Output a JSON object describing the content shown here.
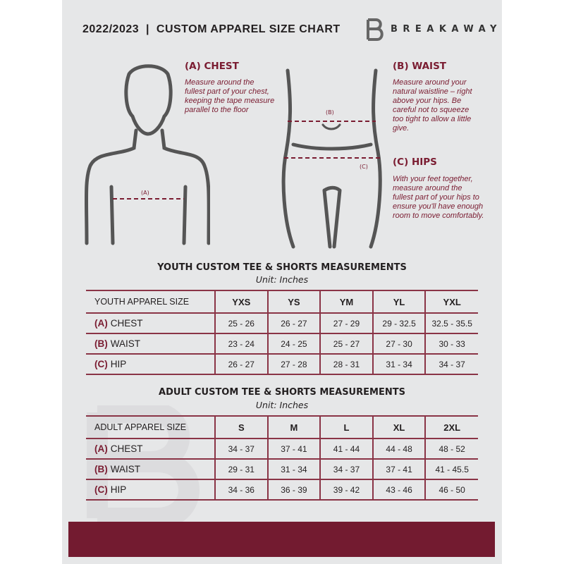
{
  "header": {
    "title": "2022/2023  |  CUSTOM APPAREL SIZE CHART",
    "brand": "BREAKAWAY"
  },
  "measures": {
    "chest": {
      "heading": "(A) CHEST",
      "text": "Measure around the fullest part of your chest, keeping the tape measure parallel to the floor",
      "marker": "(A)"
    },
    "waist": {
      "heading": "(B) WAIST",
      "text": "Measure around your natural waistline – right above your hips. Be careful not to squeeze too tight to allow a little give.",
      "marker": "(B)"
    },
    "hips": {
      "heading": "(C) HIPS",
      "text": "With your feet together, measure around the fullest part of your hips to ensure you'll have enough room to move comfortably.",
      "marker": "(C)"
    }
  },
  "youth": {
    "title": "YOUTH CUSTOM TEE & SHORTS MEASUREMENTS",
    "unit": "Unit: Inches",
    "header": [
      "YOUTH APPAREL SIZE",
      "YXS",
      "YS",
      "YM",
      "YL",
      "YXL"
    ],
    "rows": [
      {
        "letter": "(A)",
        "label": "CHEST",
        "values": [
          "25 - 26",
          "26 - 27",
          "27 - 29",
          "29 - 32.5",
          "32.5 - 35.5"
        ]
      },
      {
        "letter": "(B)",
        "label": "WAIST",
        "values": [
          "23 - 24",
          "24 - 25",
          "25 - 27",
          "27 - 30",
          "30 - 33"
        ]
      },
      {
        "letter": "(C)",
        "label": "HIP",
        "values": [
          "26 - 27",
          "27 - 28",
          "28 - 31",
          "31 - 34",
          "34 - 37"
        ]
      }
    ]
  },
  "adult": {
    "title": "ADULT CUSTOM TEE & SHORTS MEASUREMENTS",
    "unit": "Unit: Inches",
    "header": [
      "ADULT APPAREL SIZE",
      "S",
      "M",
      "L",
      "XL",
      "2XL"
    ],
    "rows": [
      {
        "letter": "(A)",
        "label": "CHEST",
        "values": [
          "34 - 37",
          "37 - 41",
          "41 - 44",
          "44 - 48",
          "48 - 52"
        ]
      },
      {
        "letter": "(B)",
        "label": "WAIST",
        "values": [
          "29 - 31",
          "31 - 34",
          "34 - 37",
          "37 - 41",
          "41 - 45.5"
        ]
      },
      {
        "letter": "(C)",
        "label": "HIP",
        "values": [
          "34 - 36",
          "36 - 39",
          "39 - 42",
          "43 - 46",
          "46 - 50"
        ]
      }
    ]
  },
  "colors": {
    "accent": "#7a1c31",
    "background": "#e6e7e8",
    "footer": "#731b30"
  }
}
